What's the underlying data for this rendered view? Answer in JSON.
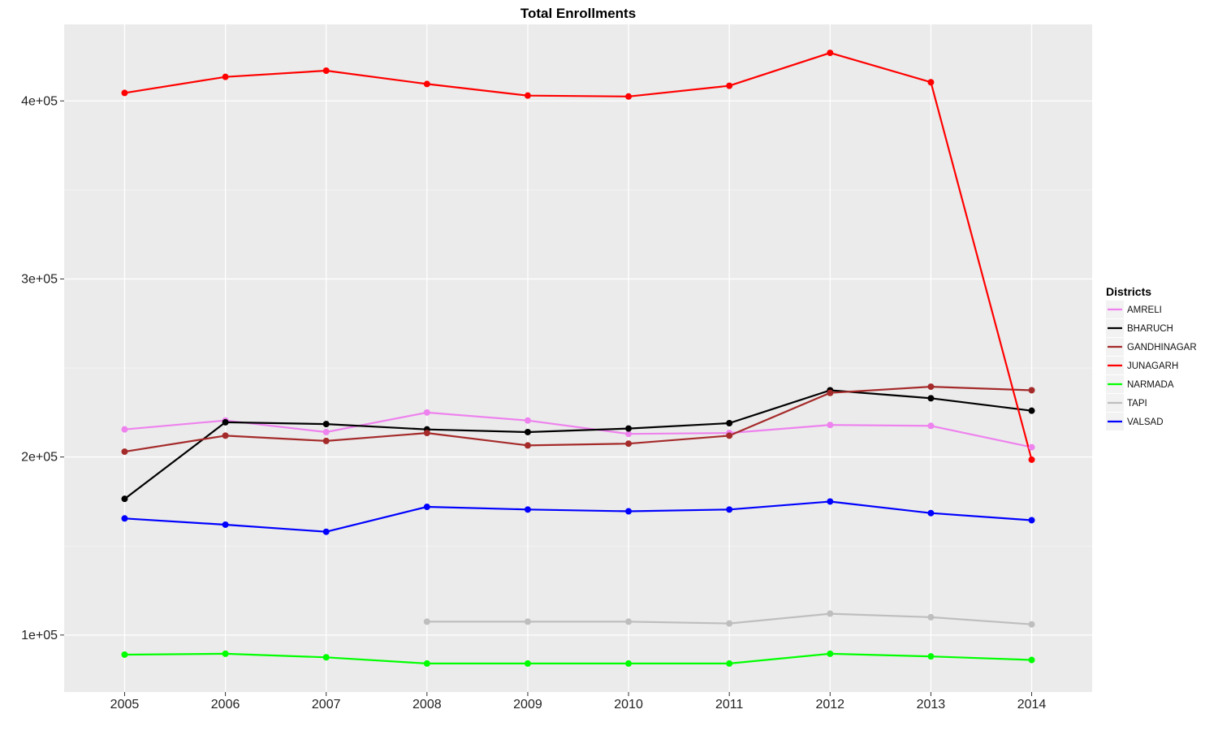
{
  "chart_data": {
    "type": "line",
    "title": "Total Enrollments",
    "xlabel": "",
    "ylabel": "",
    "x": [
      2005,
      2006,
      2007,
      2008,
      2009,
      2010,
      2011,
      2012,
      2013,
      2014
    ],
    "x_tick_labels": [
      "2005",
      "2006",
      "2007",
      "2008",
      "2009",
      "2010",
      "2011",
      "2012",
      "2013",
      "2014"
    ],
    "y_ticks": [
      100000,
      200000,
      300000,
      400000
    ],
    "y_tick_labels": [
      "1e+05",
      "2e+05",
      "3e+05",
      "4e+05"
    ],
    "ylim": [
      68000,
      443000
    ],
    "grid": true,
    "legend": {
      "title": "Districts",
      "position": "right"
    },
    "series": [
      {
        "name": "AMRELI",
        "color": "#EE82EE",
        "values": [
          215500,
          220500,
          214000,
          225000,
          220500,
          213000,
          213500,
          218000,
          217500,
          205500
        ]
      },
      {
        "name": "BHARUCH",
        "color": "#000000",
        "values": [
          176500,
          219500,
          218500,
          215500,
          214000,
          216000,
          219000,
          237500,
          233000,
          226000
        ]
      },
      {
        "name": "GANDHINAGAR",
        "color": "#A52A2A",
        "values": [
          203000,
          212000,
          209000,
          213500,
          206500,
          207500,
          212000,
          236000,
          239500,
          237500
        ]
      },
      {
        "name": "JUNAGARH",
        "color": "#FF0000",
        "values": [
          404500,
          413500,
          417000,
          409500,
          403000,
          402500,
          408500,
          427000,
          410500,
          198500
        ]
      },
      {
        "name": "NARMADA",
        "color": "#00FF00",
        "values": [
          89000,
          89500,
          87500,
          84000,
          84000,
          84000,
          84000,
          89500,
          88000,
          86000
        ]
      },
      {
        "name": "TAPI",
        "color": "#BEBEBE",
        "values": [
          null,
          null,
          null,
          107500,
          107500,
          107500,
          106500,
          112000,
          110000,
          106000
        ]
      },
      {
        "name": "VALSAD",
        "color": "#0000FF",
        "values": [
          165500,
          162000,
          158000,
          172000,
          170500,
          169500,
          170500,
          175000,
          168500,
          164500
        ]
      }
    ]
  }
}
